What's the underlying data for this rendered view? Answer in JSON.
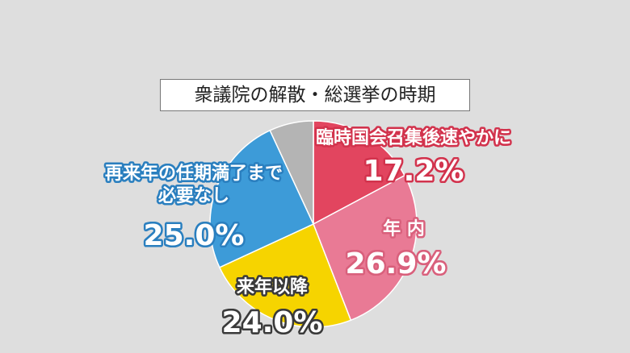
{
  "chart_data": {
    "type": "pie",
    "title": "衆議院の解散・総選挙の時期",
    "categories": [
      "臨時国会召集後速やかに",
      "年 内",
      "来年以降",
      "再来年の任期満了まで必要なし",
      null
    ],
    "values": [
      17.2,
      26.9,
      24.0,
      25.0,
      6.9
    ],
    "value_labels": [
      "17.2%",
      "26.9%",
      "24.0%",
      "25.0%",
      null
    ],
    "colors": [
      "#e2455f",
      "#e97a95",
      "#f6d400",
      "#3d9bd8",
      "#b4b4b4"
    ]
  }
}
